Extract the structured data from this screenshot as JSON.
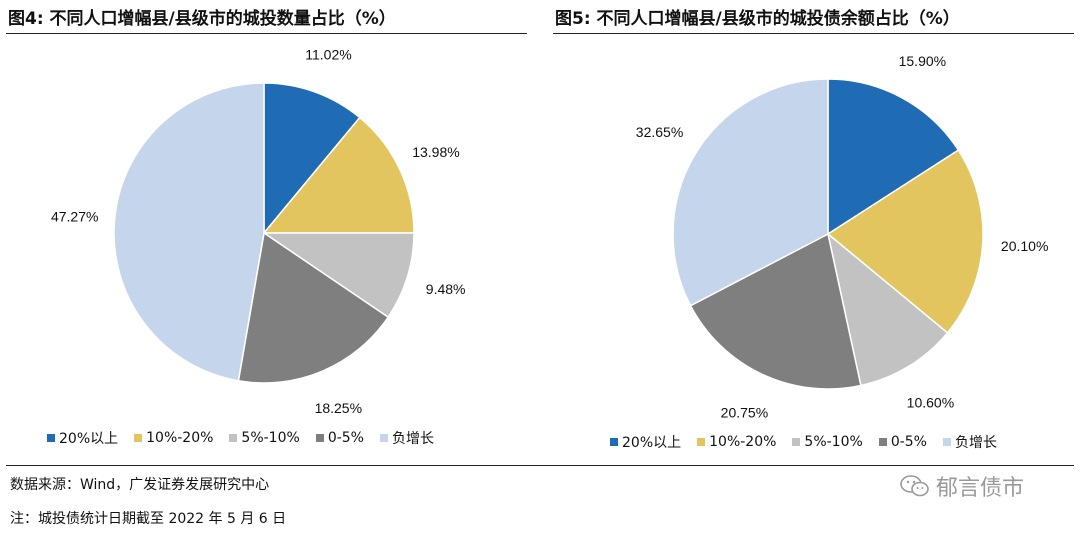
{
  "figure_left": {
    "title": "图4:  不同人口增幅县/县级市的城投数量占比（%）"
  },
  "figure_right": {
    "title": "图5:  不同人口增幅县/县级市的城投债余额占比（%）"
  },
  "legend_labels": [
    "20%以上",
    "10%-20%",
    "5%-10%",
    "0-5%",
    "负增长"
  ],
  "colors": [
    "#1f6bb4",
    "#e3c55f",
    "#c2c2c2",
    "#7f7f7f",
    "#c5d6ec"
  ],
  "chart_data": [
    {
      "type": "pie",
      "title": "图4:  不同人口增幅县/县级市的城投数量占比（%）",
      "categories": [
        "20%以上",
        "10%-20%",
        "5%-10%",
        "0-5%",
        "负增长"
      ],
      "values": [
        11.02,
        13.98,
        9.48,
        18.25,
        47.27
      ],
      "labels": [
        "11.02%",
        "13.98%",
        "9.48%",
        "18.25%",
        "47.27%"
      ],
      "legend": "bottom"
    },
    {
      "type": "pie",
      "title": "图5:  不同人口增幅县/县级市的城投债余额占比（%）",
      "categories": [
        "20%以上",
        "10%-20%",
        "5%-10%",
        "0-5%",
        "负增长"
      ],
      "values": [
        15.9,
        20.1,
        10.6,
        20.75,
        32.65
      ],
      "labels": [
        "15.90%",
        "20.10%",
        "10.60%",
        "20.75%",
        "32.65%"
      ],
      "legend": "bottom"
    }
  ],
  "footer": {
    "source": "数据来源：Wind，广发证券发展研究中心",
    "note": "注：城投债统计日期截至 2022 年 5 月 6 日"
  },
  "watermark": {
    "text": "郁言债市",
    "icon": "wechat-icon"
  }
}
